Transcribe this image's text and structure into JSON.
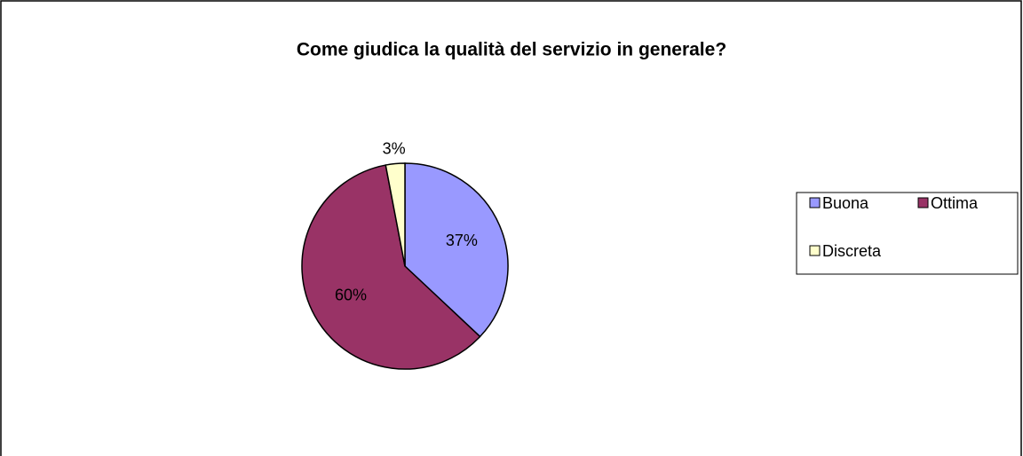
{
  "chart_data": {
    "type": "pie",
    "title": "Come giudica la qualità del servizio in generale?",
    "categories": [
      "Buona",
      "Ottima",
      "Discreta"
    ],
    "values": [
      37,
      60,
      3
    ],
    "value_labels": [
      "37%",
      "60%",
      "3%"
    ],
    "colors": [
      "#9999ff",
      "#993366",
      "#ffffcc"
    ],
    "legend": "right"
  }
}
